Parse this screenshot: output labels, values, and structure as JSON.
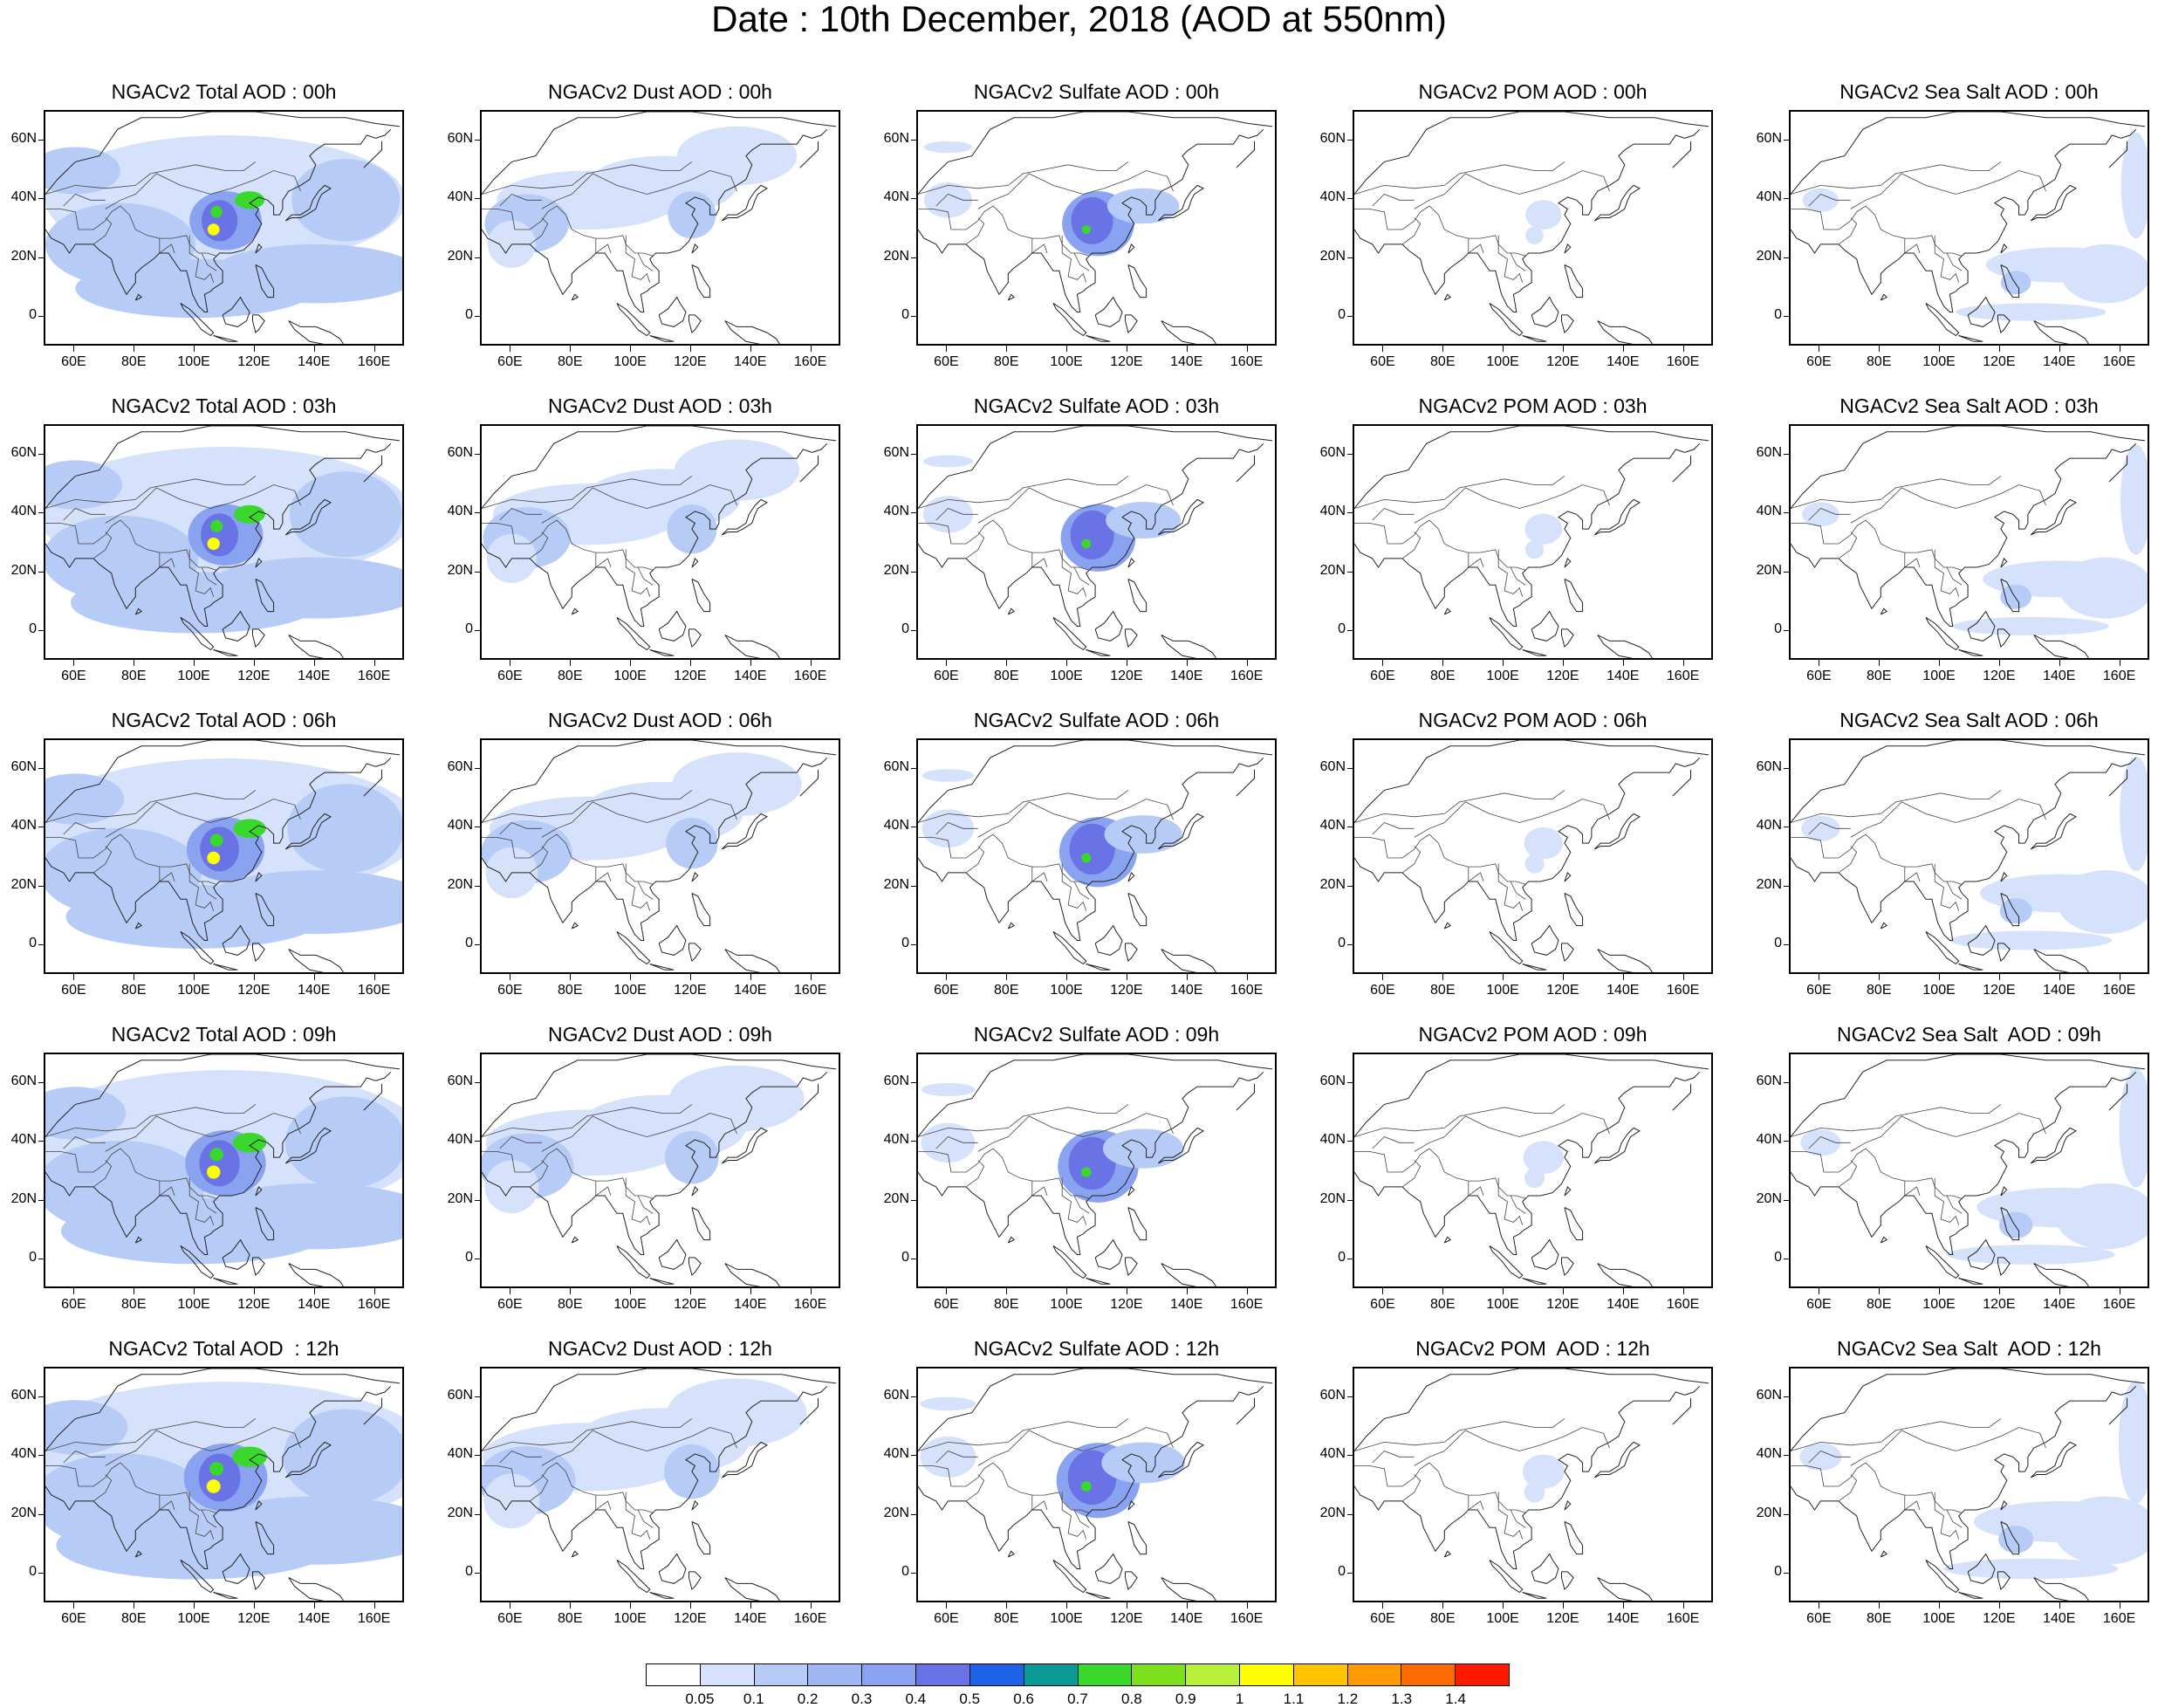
{
  "title": "Date : 10th December, 2018 (AOD at 550nm)",
  "panels": [
    [
      "NGACv2 Total AOD : 00h",
      "NGACv2 Dust AOD : 00h",
      "NGACv2 Sulfate AOD : 00h",
      "NGACv2 POM AOD : 00h",
      "NGACv2 Sea Salt AOD : 00h"
    ],
    [
      "NGACv2 Total AOD : 03h",
      "NGACv2 Dust AOD : 03h",
      "NGACv2 Sulfate AOD : 03h",
      "NGACv2 POM AOD : 03h",
      "NGACv2 Sea Salt AOD : 03h"
    ],
    [
      "NGACv2 Total AOD : 06h",
      "NGACv2 Dust AOD : 06h",
      "NGACv2 Sulfate AOD : 06h",
      "NGACv2 POM AOD : 06h",
      "NGACv2 Sea Salt AOD : 06h"
    ],
    [
      "NGACv2 Total AOD : 09h",
      "NGACv2 Dust AOD : 09h",
      "NGACv2 Sulfate AOD : 09h",
      "NGACv2 POM AOD : 09h",
      "NGACv2 Sea Salt  AOD : 09h"
    ],
    [
      "NGACv2 Total AOD  : 12h",
      "NGACv2 Dust AOD : 12h",
      "NGACv2 Sulfate AOD : 12h",
      "NGACv2 POM  AOD : 12h",
      "NGACv2 Sea Salt  AOD : 12h"
    ]
  ],
  "lat_labels": [
    "60N",
    "40N",
    "20N",
    "0"
  ],
  "lon_labels": [
    "60E",
    "80E",
    "100E",
    "120E",
    "140E",
    "160E"
  ],
  "colorbar": {
    "labels": [
      "0.05",
      "0.1",
      "0.2",
      "0.3",
      "0.4",
      "0.5",
      "0.6",
      "0.7",
      "0.8",
      "0.9",
      "1",
      "1.1",
      "1.2",
      "1.3",
      "1.4"
    ],
    "colors": [
      "#ffffff",
      "#d6e2fb",
      "#b7cbf7",
      "#9fb8f4",
      "#8aa3f0",
      "#6a73e6",
      "#1e62e8",
      "#0a9a96",
      "#3ad82c",
      "#7de01d",
      "#b9f03a",
      "#ffff00",
      "#ffc400",
      "#ff9a00",
      "#ff6a00",
      "#ff1a00"
    ]
  },
  "field_colors": {
    "light": "#d6e2fb",
    "mid": "#b7cbf7",
    "strong": "#8aa3f0",
    "deep": "#6a73e6",
    "green": "#3ad82c",
    "yellow": "#ffff00"
  }
}
